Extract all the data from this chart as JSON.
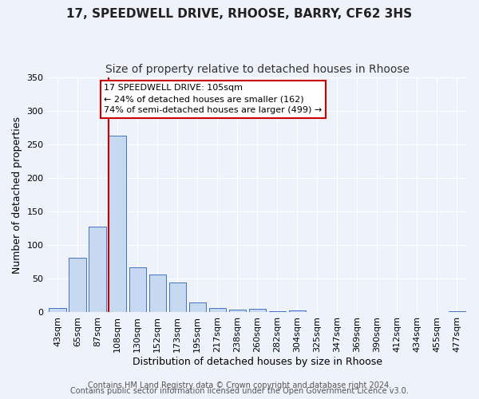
{
  "title": "17, SPEEDWELL DRIVE, RHOOSE, BARRY, CF62 3HS",
  "subtitle": "Size of property relative to detached houses in Rhoose",
  "xlabel": "Distribution of detached houses by size in Rhoose",
  "ylabel": "Number of detached properties",
  "footer_line1": "Contains HM Land Registry data © Crown copyright and database right 2024.",
  "footer_line2": "Contains public sector information licensed under the Open Government Licence v3.0.",
  "annotation_title": "17 SPEEDWELL DRIVE: 105sqm",
  "annotation_line2": "← 24% of detached houses are smaller (162)",
  "annotation_line3": "74% of semi-detached houses are larger (499) →",
  "bar_labels": [
    "43sqm",
    "65sqm",
    "87sqm",
    "108sqm",
    "130sqm",
    "152sqm",
    "173sqm",
    "195sqm",
    "217sqm",
    "238sqm",
    "260sqm",
    "282sqm",
    "304sqm",
    "325sqm",
    "347sqm",
    "369sqm",
    "390sqm",
    "412sqm",
    "434sqm",
    "455sqm",
    "477sqm"
  ],
  "bar_values": [
    6,
    81,
    128,
    263,
    67,
    56,
    45,
    15,
    7,
    4,
    5,
    2,
    3,
    1,
    1,
    0,
    0,
    0,
    0,
    0,
    2
  ],
  "bar_color": "#c6d9f0",
  "bar_edge_color": "#4472c4",
  "vline_color": "#cc0000",
  "ylim": [
    0,
    350
  ],
  "yticks": [
    0,
    50,
    100,
    150,
    200,
    250,
    300,
    350
  ],
  "background_color": "#eef2fa",
  "grid_color": "#ffffff",
  "annotation_box_color": "#ffffff",
  "annotation_box_edge_color": "#cc0000",
  "title_fontsize": 11,
  "subtitle_fontsize": 10,
  "axis_label_fontsize": 9,
  "tick_fontsize": 8,
  "annotation_fontsize": 8,
  "footer_fontsize": 7
}
